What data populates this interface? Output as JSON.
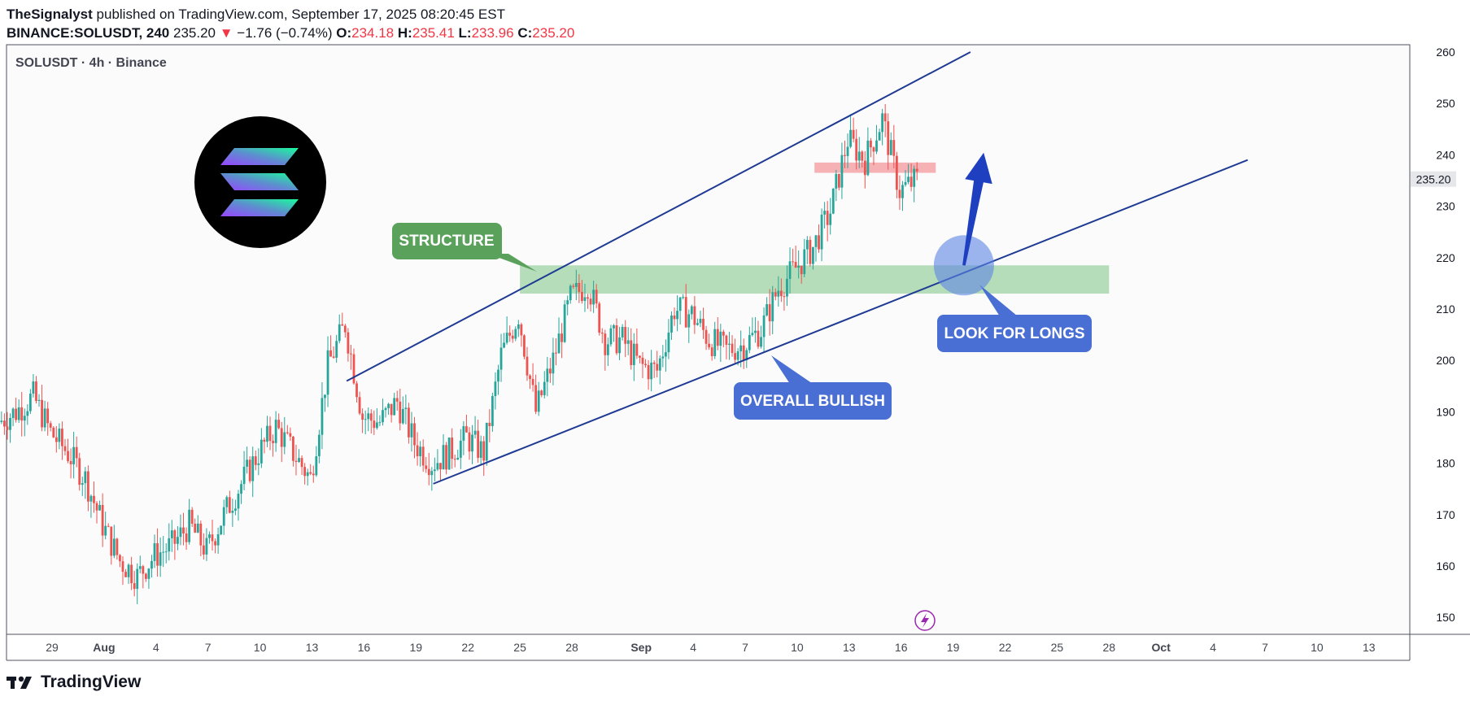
{
  "header": {
    "author": "TheSignalyst",
    "published": " published on TradingView.com, September 17, 2025 08:20:45 EST",
    "symbol_line": "BINANCE:SOLUSDT, 240",
    "last": "235.20",
    "arrow": "▼",
    "change": "−1.76 (−0.74%)",
    "o_label": "O:",
    "o_value": "234.18",
    "h_label": "H:",
    "h_value": "235.41",
    "l_label": "L:",
    "l_value": "233.96",
    "c_label": "C:",
    "c_value": "235.20"
  },
  "pane": {
    "symbol_title": "SOLUSDT · 4h · Binance",
    "logo_icon": "solana-logo-icon",
    "event_icon": "lightning-icon"
  },
  "annotations": {
    "structure": "STRUCTURE",
    "look_for_longs": "LOOK FOR LONGS",
    "overall_bullish": "OVERALL BULLISH"
  },
  "footer": {
    "brand": "TradingView",
    "logo_icon": "tradingview-logo-icon"
  },
  "colors": {
    "up": "#26a69a",
    "down": "#ef5350",
    "channel": "#1f3a93",
    "structure_zone": "#a5d6a7",
    "resistance_zone": "#f4a3a8",
    "structure_label": "#5aa25c",
    "blue_label": "#4a6fd4",
    "arrow": "#1e3fbf"
  },
  "chart_data": {
    "type": "candlestick",
    "symbol": "SOLUSDT",
    "timeframe": "4h",
    "exchange": "Binance",
    "ylim": [
      147,
      261
    ],
    "y_ticks": [
      150,
      160,
      170,
      180,
      190,
      200,
      210,
      220,
      230,
      240,
      250,
      260
    ],
    "x_tick_labels": [
      "29",
      "Aug",
      "4",
      "7",
      "10",
      "13",
      "16",
      "19",
      "22",
      "25",
      "28",
      "Sep",
      "4",
      "7",
      "10",
      "13",
      "16",
      "19",
      "22",
      "25",
      "28",
      "Oct",
      "4",
      "7",
      "10",
      "13"
    ],
    "last_price_label": "235.20",
    "price_path": [
      {
        "date": "2025-07-26",
        "close": 188
      },
      {
        "date": "2025-07-27",
        "close": 190
      },
      {
        "date": "2025-07-28",
        "close": 193
      },
      {
        "date": "2025-07-29",
        "close": 186
      },
      {
        "date": "2025-07-30",
        "close": 182
      },
      {
        "date": "2025-07-31",
        "close": 177
      },
      {
        "date": "2025-08-01",
        "close": 168
      },
      {
        "date": "2025-08-02",
        "close": 161
      },
      {
        "date": "2025-08-03",
        "close": 158
      },
      {
        "date": "2025-08-04",
        "close": 162
      },
      {
        "date": "2025-08-05",
        "close": 164
      },
      {
        "date": "2025-08-06",
        "close": 168
      },
      {
        "date": "2025-08-07",
        "close": 163
      },
      {
        "date": "2025-08-08",
        "close": 170
      },
      {
        "date": "2025-08-09",
        "close": 176
      },
      {
        "date": "2025-08-10",
        "close": 182
      },
      {
        "date": "2025-08-11",
        "close": 187
      },
      {
        "date": "2025-08-12",
        "close": 182
      },
      {
        "date": "2025-08-13",
        "close": 177
      },
      {
        "date": "2025-08-14",
        "close": 199
      },
      {
        "date": "2025-08-15",
        "close": 207
      },
      {
        "date": "2025-08-16",
        "close": 189
      },
      {
        "date": "2025-08-17",
        "close": 188
      },
      {
        "date": "2025-08-18",
        "close": 192
      },
      {
        "date": "2025-08-19",
        "close": 184
      },
      {
        "date": "2025-08-20",
        "close": 180
      },
      {
        "date": "2025-08-21",
        "close": 182
      },
      {
        "date": "2025-08-22",
        "close": 185
      },
      {
        "date": "2025-08-23",
        "close": 182
      },
      {
        "date": "2025-08-24",
        "close": 201
      },
      {
        "date": "2025-08-25",
        "close": 209
      },
      {
        "date": "2025-08-26",
        "close": 190
      },
      {
        "date": "2025-08-27",
        "close": 200
      },
      {
        "date": "2025-08-28",
        "close": 212
      },
      {
        "date": "2025-08-29",
        "close": 215
      },
      {
        "date": "2025-08-30",
        "close": 204
      },
      {
        "date": "2025-08-31",
        "close": 204
      },
      {
        "date": "2025-09-01",
        "close": 199
      },
      {
        "date": "2025-09-02",
        "close": 198
      },
      {
        "date": "2025-09-03",
        "close": 210
      },
      {
        "date": "2025-09-04",
        "close": 209
      },
      {
        "date": "2025-09-05",
        "close": 204
      },
      {
        "date": "2025-09-06",
        "close": 202
      },
      {
        "date": "2025-09-07",
        "close": 203
      },
      {
        "date": "2025-09-08",
        "close": 206
      },
      {
        "date": "2025-09-09",
        "close": 214
      },
      {
        "date": "2025-09-10",
        "close": 218
      },
      {
        "date": "2025-09-11",
        "close": 222
      },
      {
        "date": "2025-09-12",
        "close": 229
      },
      {
        "date": "2025-09-13",
        "close": 243
      },
      {
        "date": "2025-09-14",
        "close": 239
      },
      {
        "date": "2025-09-15",
        "close": 247
      },
      {
        "date": "2025-09-16",
        "close": 233
      },
      {
        "date": "2025-09-17",
        "close": 235.2
      }
    ],
    "channel_upper": {
      "start": {
        "date": "2025-08-15",
        "price": 196
      },
      "end": {
        "date": "2025-09-20",
        "price": 260
      }
    },
    "channel_lower": {
      "start": {
        "date": "2025-08-20",
        "price": 176
      },
      "end": {
        "date": "2025-10-06",
        "price": 239
      }
    },
    "structure_zone": {
      "from": "2025-08-25",
      "to": "2025-09-28",
      "price_low": 213,
      "price_high": 218.5
    },
    "resistance_zone": {
      "from": "2025-09-11",
      "to": "2025-09-18",
      "price_low": 236.5,
      "price_high": 238.5
    },
    "look_for_longs_point": {
      "date": "2025-09-20",
      "price": 218.5
    },
    "arrow_target": {
      "date": "2025-09-21",
      "price": 236
    }
  }
}
